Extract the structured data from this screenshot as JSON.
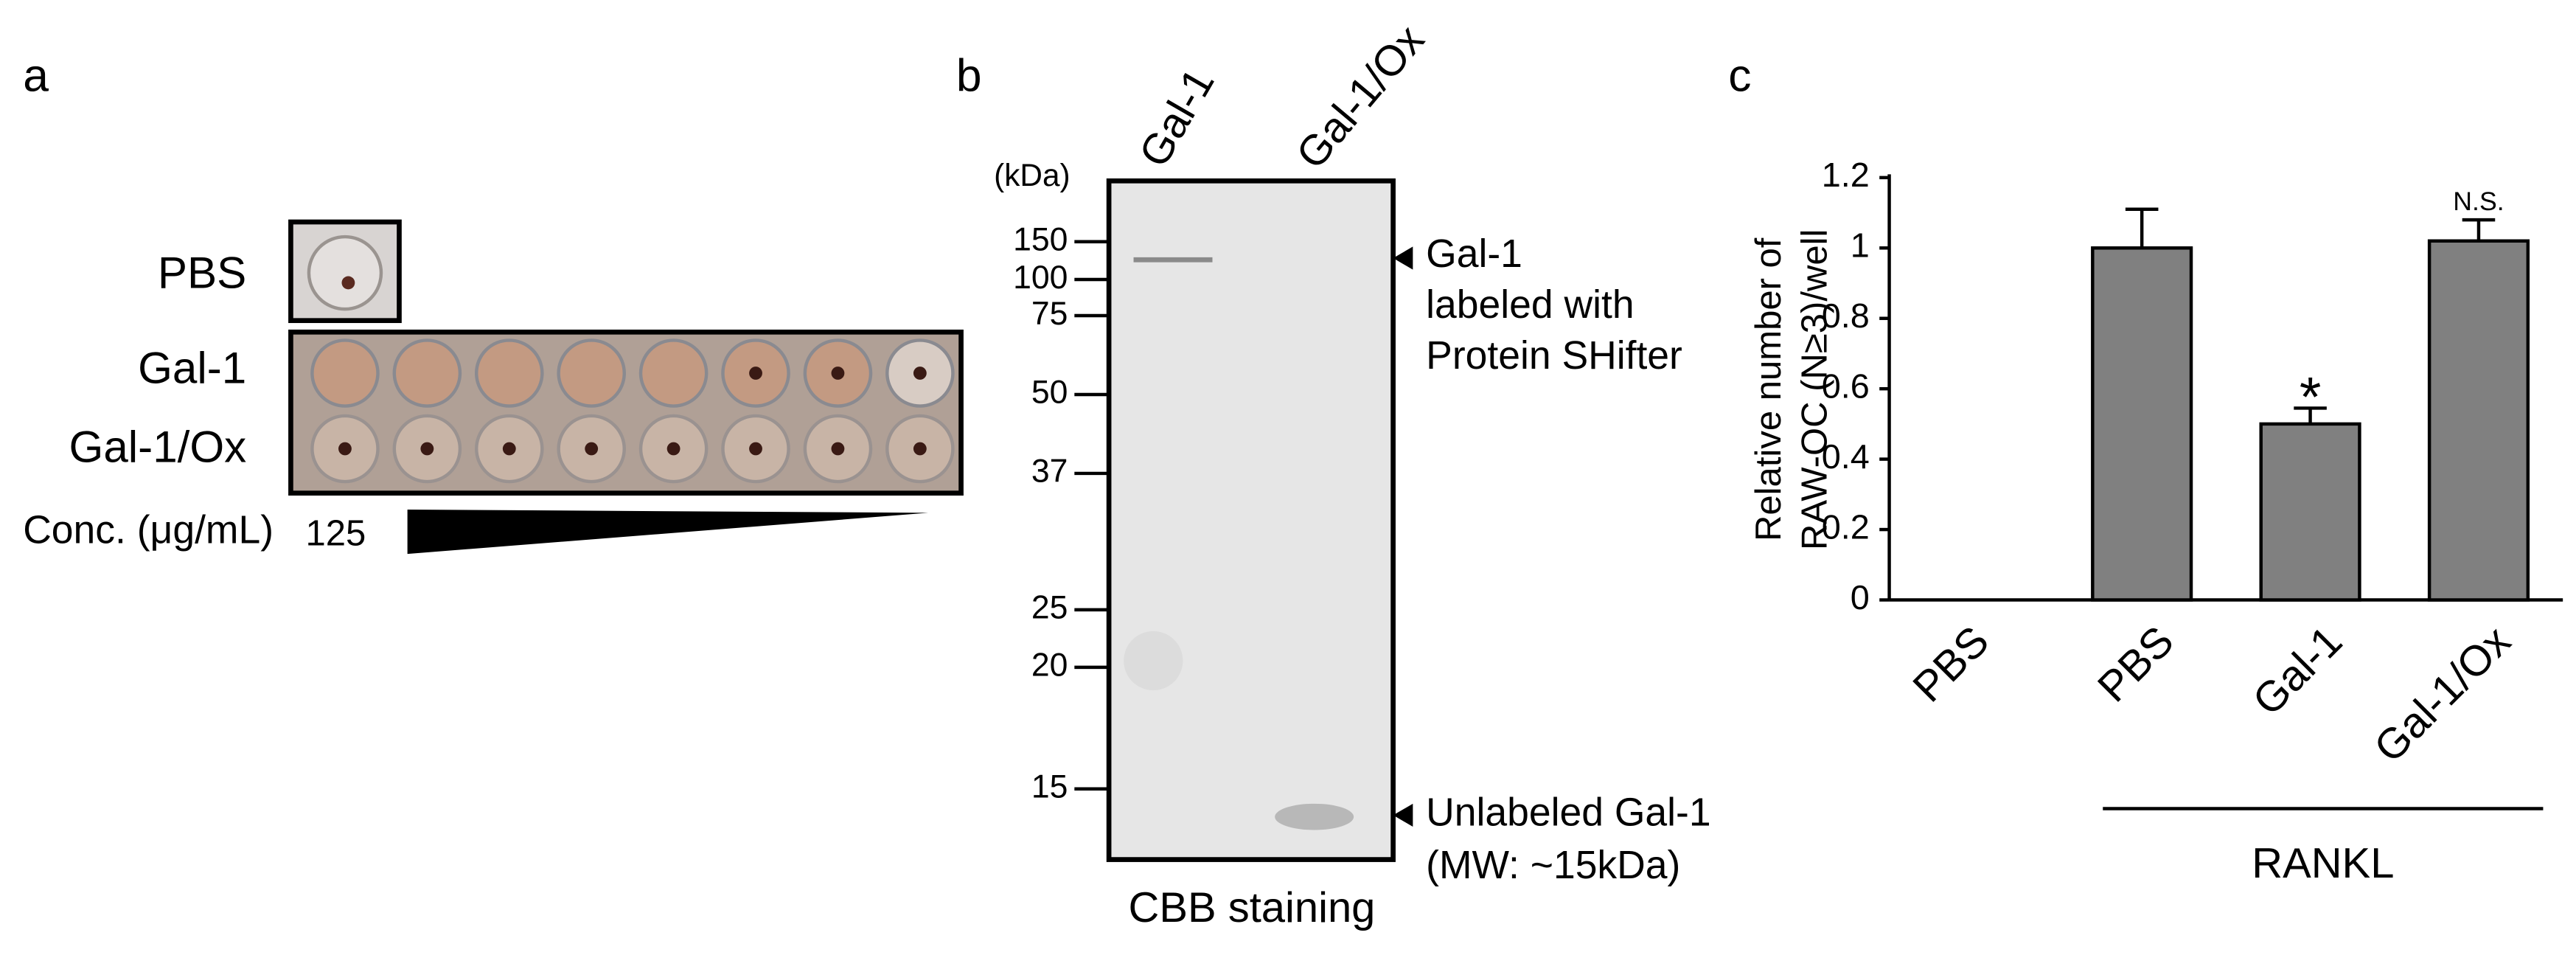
{
  "panel_a": {
    "label": "a",
    "rows": [
      "PBS",
      "Gal-1",
      "Gal-1/Ox"
    ],
    "conc_label": "Conc. (μg/mL)",
    "conc_value": 125
  },
  "panel_b": {
    "label": "b",
    "lanes": [
      "Gal-1",
      "Gal-1/Ox"
    ],
    "unit": "(kDa)",
    "markers": [
      150,
      100,
      75,
      50,
      37,
      25,
      20,
      15
    ],
    "annotations": [
      [
        "Gal-1",
        "labeled with",
        "Protein SHifter"
      ],
      [
        "Unlabeled Gal-1",
        "(MW: ~15kDa)"
      ]
    ],
    "caption": "CBB staining"
  },
  "chart_data": {
    "type": "bar",
    "panel_label": "c",
    "ylabel": [
      "Relative number of",
      "RAW-OC (N≥3)/well"
    ],
    "categories": [
      "PBS",
      "PBS",
      "Gal-1",
      "Gal-1/Ox"
    ],
    "values": [
      0,
      1,
      0.5,
      1.02
    ],
    "errors": [
      null,
      0.11,
      0.045,
      0.06
    ],
    "annotations": [
      null,
      null,
      "*",
      "N.S."
    ],
    "group_label": "RANKL",
    "color": "#808080",
    "ylim": [
      0,
      1.2
    ],
    "yticks": [
      0,
      0.2,
      0.4,
      0.6,
      0.8,
      1,
      1.2
    ]
  }
}
